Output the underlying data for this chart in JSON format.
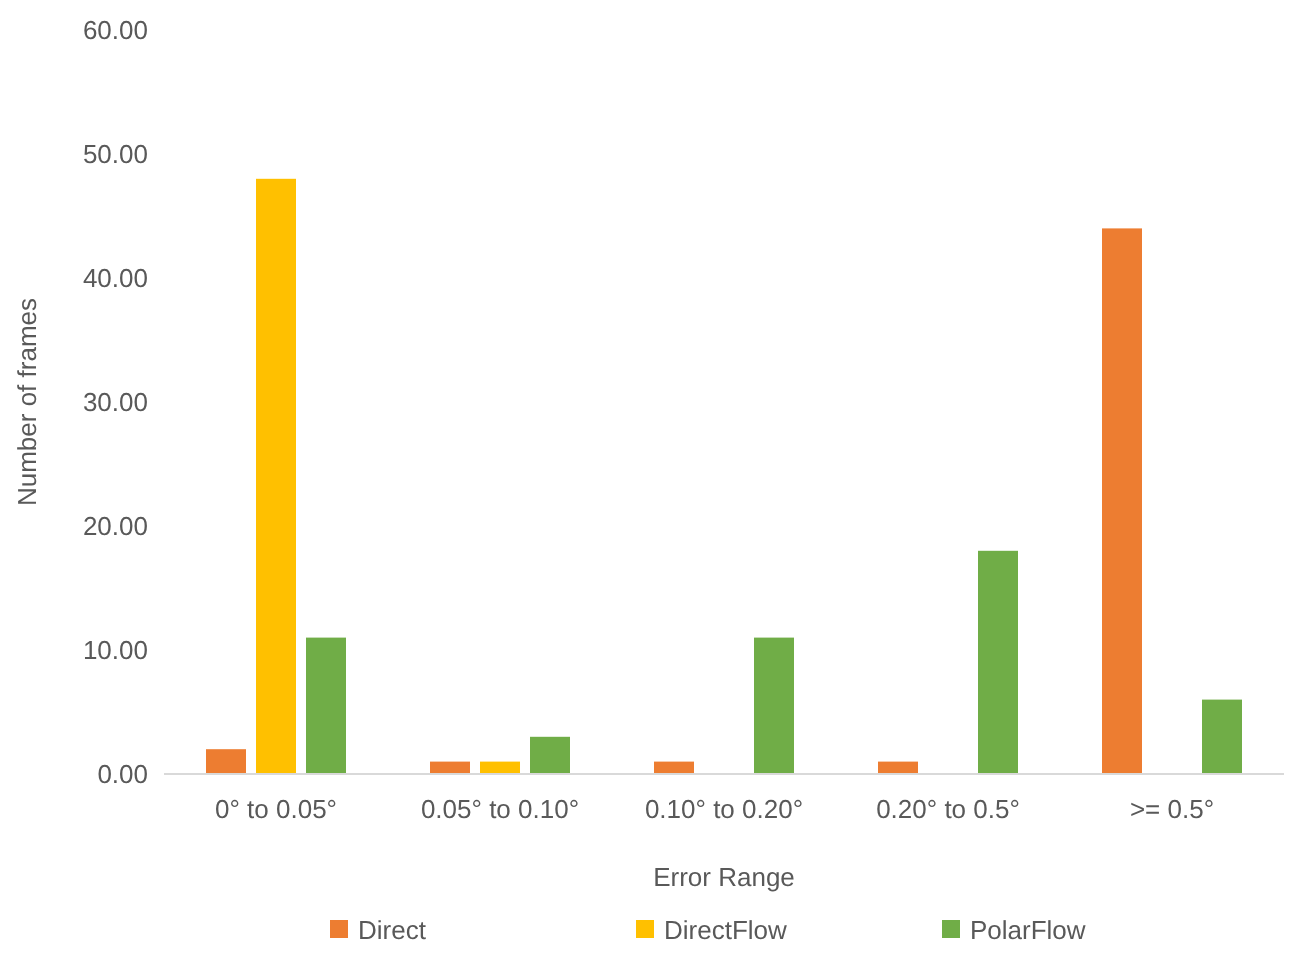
{
  "chart_data": {
    "type": "bar",
    "xlabel": "Error Range",
    "ylabel": "Number of frames",
    "categories": [
      "0° to 0.05°",
      "0.05° to 0.10°",
      "0.10° to 0.20°",
      "0.20° to 0.5°",
      ">= 0.5°"
    ],
    "series": [
      {
        "name": "Direct",
        "color": "#ed7d31",
        "values": [
          2,
          1,
          1,
          1,
          44
        ]
      },
      {
        "name": "DirectFlow",
        "color": "#ffc000",
        "values": [
          48,
          1,
          0,
          0,
          0
        ]
      },
      {
        "name": "PolarFlow",
        "color": "#70ad47",
        "values": [
          11,
          3,
          11,
          18,
          6
        ]
      }
    ],
    "ylim": [
      0,
      60
    ],
    "yticks": [
      {
        "value": 0,
        "label": "0.00"
      },
      {
        "value": 10,
        "label": "10.00"
      },
      {
        "value": 20,
        "label": "20.00"
      },
      {
        "value": 30,
        "label": "30.00"
      },
      {
        "value": 40,
        "label": "40.00"
      },
      {
        "value": 50,
        "label": "50.00"
      },
      {
        "value": 60,
        "label": "60.00"
      }
    ],
    "grid": false,
    "legend": "bottom"
  }
}
